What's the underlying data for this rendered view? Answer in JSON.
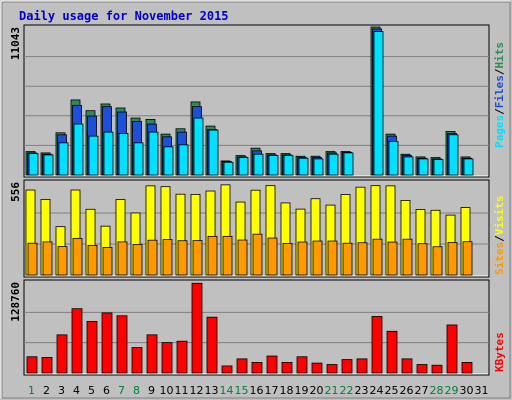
{
  "title": "Daily usage for November 2015",
  "colors": {
    "hits": "#2e8b57",
    "files": "#1d4fd8",
    "pages": "#00e0ff",
    "visits": "#ffff00",
    "sites": "#ff9900",
    "kbytes": "#ff0000",
    "title": "#0000cc",
    "weekend_label": "#00803a",
    "weekday_label": "#000000",
    "panel_bg": "#c0c0c0",
    "gridline": "#808080"
  },
  "chart_data": [
    {
      "type": "bar",
      "panel": "hits-files-pages",
      "ymax_label": "11043",
      "ylim": [
        0,
        11043
      ],
      "legend": [
        "Pages",
        "Files",
        "Hits"
      ],
      "categories": [
        "1",
        "2",
        "3",
        "4",
        "5",
        "6",
        "7",
        "8",
        "9",
        "10",
        "11",
        "12",
        "13",
        "14",
        "15",
        "16",
        "17",
        "18",
        "19",
        "20",
        "21",
        "22",
        "23",
        "24",
        "25",
        "26",
        "27",
        "28",
        "29",
        "30",
        "31"
      ],
      "series": [
        {
          "name": "Hits",
          "values": [
            1750,
            1650,
            3150,
            5600,
            4800,
            5300,
            5000,
            4250,
            4150,
            3050,
            3450,
            5450,
            3650,
            1050,
            1450,
            2000,
            1600,
            1600,
            1400,
            1400,
            1750,
            1750,
            0,
            11043,
            3050,
            1550,
            1350,
            1300,
            3250,
            1350,
            0
          ]
        },
        {
          "name": "Files",
          "values": [
            1650,
            1550,
            3000,
            5200,
            4400,
            5100,
            4700,
            4000,
            3800,
            2850,
            3200,
            5100,
            3400,
            1000,
            1350,
            1800,
            1500,
            1500,
            1300,
            1300,
            1650,
            1700,
            0,
            10900,
            2900,
            1450,
            1250,
            1200,
            3100,
            1250,
            0
          ]
        },
        {
          "name": "Pages",
          "values": [
            1600,
            1500,
            2400,
            3800,
            2900,
            3200,
            3100,
            2400,
            3200,
            2100,
            2250,
            4250,
            3350,
            950,
            1300,
            1550,
            1450,
            1450,
            1250,
            1200,
            1550,
            1650,
            0,
            10700,
            2500,
            1350,
            1200,
            1150,
            3000,
            1200,
            0
          ]
        }
      ]
    },
    {
      "type": "bar",
      "panel": "visits-sites",
      "ymax_label": "556",
      "ylim": [
        0,
        556
      ],
      "legend": [
        "Sites",
        "Visits"
      ],
      "categories": [
        "1",
        "2",
        "3",
        "4",
        "5",
        "6",
        "7",
        "8",
        "9",
        "10",
        "11",
        "12",
        "13",
        "14",
        "15",
        "16",
        "17",
        "18",
        "19",
        "20",
        "21",
        "22",
        "23",
        "24",
        "25",
        "26",
        "27",
        "28",
        "29",
        "30",
        "31"
      ],
      "series": [
        {
          "name": "Visits",
          "values": [
            508,
            452,
            289,
            508,
            393,
            292,
            451,
            371,
            533,
            528,
            483,
            482,
            502,
            539,
            436,
            507,
            534,
            431,
            394,
            456,
            418,
            481,
            525,
            534,
            533,
            446,
            391,
            387,
            358,
            403,
            0
          ]
        },
        {
          "name": "Sites",
          "values": [
            190,
            198,
            170,
            219,
            177,
            165,
            198,
            183,
            208,
            212,
            205,
            206,
            231,
            231,
            209,
            244,
            221,
            189,
            197,
            203,
            203,
            190,
            193,
            214,
            197,
            214,
            187,
            169,
            194,
            199,
            0
          ]
        }
      ]
    },
    {
      "type": "bar",
      "panel": "kbytes",
      "ymax_label": "128760",
      "ylim": [
        0,
        128760
      ],
      "legend": [
        "KBytes"
      ],
      "categories": [
        "1",
        "2",
        "3",
        "4",
        "5",
        "6",
        "7",
        "8",
        "9",
        "10",
        "11",
        "12",
        "13",
        "14",
        "15",
        "16",
        "17",
        "18",
        "19",
        "20",
        "21",
        "22",
        "23",
        "24",
        "25",
        "26",
        "27",
        "28",
        "29",
        "30",
        "31"
      ],
      "series": [
        {
          "name": "KBytes",
          "values": [
            23000,
            22000,
            54000,
            91000,
            73000,
            85000,
            81000,
            36000,
            54000,
            43000,
            45000,
            127000,
            79000,
            10000,
            20000,
            15000,
            24000,
            15000,
            23000,
            14000,
            12000,
            19000,
            20000,
            80000,
            59000,
            20000,
            12000,
            11000,
            68000,
            15000,
            0
          ]
        }
      ]
    }
  ],
  "weekend_days": [
    "1",
    "7",
    "8",
    "14",
    "15",
    "21",
    "22",
    "28",
    "29"
  ]
}
